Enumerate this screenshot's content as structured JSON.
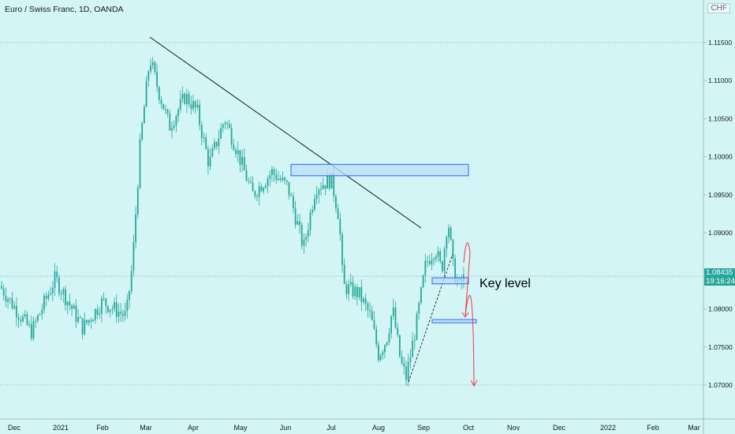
{
  "header": {
    "title": "Euro / Swiss Franc, 1D, OANDA",
    "currency": "CHF"
  },
  "annotations": {
    "key_level": "Key level"
  },
  "price_badge": {
    "price": "1.08435",
    "countdown": "19:16:24"
  },
  "colors": {
    "background": "#d4f5f5",
    "up_candle": "#26a69a",
    "down_candle": "#26a69a",
    "trendline": "#131722",
    "zone_fill": "#bbdefb",
    "zone_border": "#2962ff",
    "projection": "#f23645"
  },
  "chart_data": {
    "type": "candlestick",
    "title": "Euro / Swiss Franc, 1D, OANDA",
    "ylim": [
      1.0685,
      1.1195
    ],
    "y_ticks": [
      "1.11500",
      "1.11000",
      "1.10500",
      "1.10000",
      "1.09500",
      "1.09000",
      "1.08500",
      "1.08000",
      "1.07500",
      "1.07000"
    ],
    "x_ticks": [
      "Dec",
      "2021",
      "Feb",
      "Mar",
      "Apr",
      "May",
      "Jun",
      "Jul",
      "Aug",
      "Sep",
      "Oct",
      "Nov",
      "Dec",
      "2022",
      "Feb",
      "Mar"
    ],
    "last_price": 1.08435,
    "candles_date_range": [
      "2020-12",
      "2021-09"
    ],
    "key_anchor_points": [
      {
        "date": "Nov 2020",
        "close": 1.083
      },
      {
        "date": "Dec 2020",
        "close": 1.0795
      },
      {
        "date": "Jan 2021",
        "close": 1.08
      },
      {
        "date": "Feb 2021",
        "close": 1.082
      },
      {
        "date": "Early Mar 2021",
        "close": 1.111
      },
      {
        "date": "Mar 2021 high",
        "close": 1.115
      },
      {
        "date": "Apr 2021",
        "close": 1.106
      },
      {
        "date": "May 2021",
        "close": 1.095
      },
      {
        "date": "Jun 2021",
        "close": 1.092
      },
      {
        "date": "Jul 2021",
        "close": 1.096
      },
      {
        "date": "Late Jul 2021",
        "close": 1.083
      },
      {
        "date": "Aug 2021",
        "close": 1.072
      },
      {
        "date": "Late Aug 2021",
        "close": 1.07
      },
      {
        "date": "Sep 2021",
        "close": 1.088
      },
      {
        "date": "Late Sep 2021",
        "close": 1.0843
      }
    ],
    "horizontal_lines": [
      1.115,
      1.0843,
      1.07
    ],
    "zones": [
      {
        "from": 1.0975,
        "to": 1.099
      },
      {
        "from": 1.0833,
        "to": 1.0841
      },
      {
        "from": 1.0782,
        "to": 1.0786
      }
    ],
    "trendline": {
      "from": {
        "date": "Mar 2021",
        "price": 1.1155
      },
      "to": {
        "date": "Sep 2021",
        "price": 1.0905
      }
    }
  }
}
